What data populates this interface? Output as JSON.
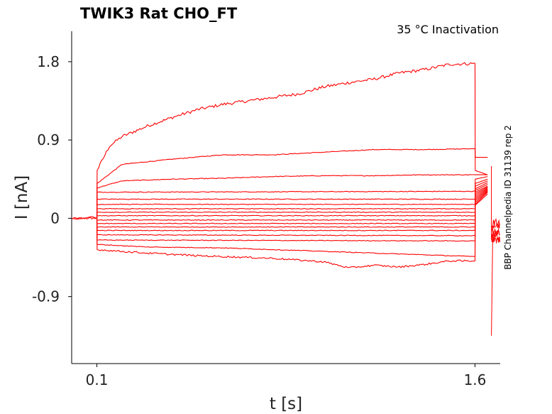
{
  "chart_data": {
    "type": "line",
    "title": "TWIK3  Rat  CHO_FT",
    "subtitle": "35 °C  Inactivation",
    "side_text": "BBP Channelpedia ID 31139 rep 2",
    "xlabel": "t [s]",
    "ylabel": "I [nA]",
    "xlim": [
      0.0,
      1.7
    ],
    "ylim": [
      -1.67,
      2.15
    ],
    "x_ticks": [
      {
        "value": 0.1,
        "label": "0.1"
      },
      {
        "value": 1.6,
        "label": "1.6"
      }
    ],
    "y_ticks": [
      {
        "value": 1.8,
        "label": "1.8"
      },
      {
        "value": 0.9,
        "label": "0.9"
      },
      {
        "value": 0,
        "label": "0"
      },
      {
        "value": -0.9,
        "label": "-0.9"
      }
    ],
    "grid": false,
    "line_color": "#ff0000",
    "series": [
      {
        "holding": 0.01,
        "x": [
          0,
          0.02,
          0.05,
          0.08,
          0.1,
          0.101,
          0.15,
          0.2,
          0.3,
          0.4,
          0.5,
          0.6,
          0.7,
          0.8,
          0.9,
          1.0,
          1.1,
          1.2,
          1.3,
          1.4,
          1.5,
          1.6,
          1.601,
          1.65
        ],
        "y": [
          0,
          -0.01,
          0.0,
          0.02,
          0.0,
          0.55,
          0.83,
          0.94,
          1.06,
          1.16,
          1.25,
          1.31,
          1.35,
          1.39,
          1.43,
          1.51,
          1.56,
          1.6,
          1.67,
          1.71,
          1.77,
          1.78,
          0.55,
          0.5
        ]
      },
      {
        "x": [
          0.1,
          0.101,
          0.2,
          0.4,
          0.6,
          0.8,
          1.0,
          1.2,
          1.4,
          1.6,
          1.601,
          1.65
        ],
        "y": [
          0.0,
          0.4,
          0.62,
          0.68,
          0.73,
          0.73,
          0.76,
          0.79,
          0.79,
          0.8,
          0.7,
          0.7
        ]
      },
      {
        "x": [
          0.1,
          0.101,
          0.2,
          0.4,
          0.6,
          0.8,
          1.0,
          1.2,
          1.4,
          1.6,
          1.601,
          1.65
        ],
        "y": [
          0.0,
          0.35,
          0.43,
          0.45,
          0.46,
          0.48,
          0.49,
          0.49,
          0.5,
          0.5,
          0.5,
          0.5
        ]
      },
      {
        "x": [
          0.1,
          0.101,
          1.6,
          1.601,
          1.65
        ],
        "y": [
          0.0,
          0.3,
          0.31,
          0.45,
          0.48
        ]
      },
      {
        "x": [
          0.1,
          0.101,
          1.6,
          1.601,
          1.65
        ],
        "y": [
          0.0,
          0.22,
          0.22,
          0.4,
          0.45
        ]
      },
      {
        "x": [
          0.1,
          0.101,
          1.6,
          1.601,
          1.65
        ],
        "y": [
          0.0,
          0.16,
          0.16,
          0.37,
          0.43
        ]
      },
      {
        "x": [
          0.1,
          0.101,
          1.6,
          1.601,
          1.65
        ],
        "y": [
          0.0,
          0.11,
          0.11,
          0.34,
          0.41
        ]
      },
      {
        "x": [
          0.1,
          0.101,
          1.6,
          1.601,
          1.65
        ],
        "y": [
          0.0,
          0.07,
          0.07,
          0.32,
          0.39
        ]
      },
      {
        "x": [
          0.1,
          0.101,
          1.6,
          1.601,
          1.65
        ],
        "y": [
          0.0,
          0.03,
          0.03,
          0.3,
          0.37
        ]
      },
      {
        "x": [
          0.1,
          0.101,
          1.6,
          1.601,
          1.65
        ],
        "y": [
          0.0,
          -0.02,
          -0.02,
          0.28,
          0.36
        ]
      },
      {
        "x": [
          0.1,
          0.101,
          1.6,
          1.601,
          1.65
        ],
        "y": [
          0.0,
          -0.06,
          -0.06,
          0.26,
          0.35
        ]
      },
      {
        "x": [
          0.1,
          0.101,
          1.6,
          1.601,
          1.65
        ],
        "y": [
          0.0,
          -0.1,
          -0.1,
          0.24,
          0.34
        ]
      },
      {
        "x": [
          0.1,
          0.101,
          1.6,
          1.601,
          1.65
        ],
        "y": [
          0.0,
          -0.14,
          -0.14,
          0.22,
          0.33
        ]
      },
      {
        "x": [
          0.1,
          0.101,
          1.6,
          1.601,
          1.65
        ],
        "y": [
          0.0,
          -0.19,
          -0.2,
          0.2,
          0.32
        ]
      },
      {
        "x": [
          0.1,
          0.101,
          1.6,
          1.601,
          1.65
        ],
        "y": [
          0.0,
          -0.25,
          -0.26,
          0.18,
          0.31
        ]
      },
      {
        "x": [
          0.1,
          0.101,
          0.3,
          0.6,
          0.9,
          1.2,
          1.6,
          1.601,
          1.65
        ],
        "y": [
          0.0,
          -0.3,
          -0.33,
          -0.34,
          -0.37,
          -0.4,
          -0.44,
          0.16,
          0.3
        ]
      },
      {
        "x": [
          0.1,
          0.101,
          0.3,
          0.5,
          0.8,
          1.0,
          1.1,
          1.2,
          1.3,
          1.4,
          1.5,
          1.6,
          1.601,
          1.65
        ],
        "y": [
          0.0,
          -0.36,
          -0.4,
          -0.43,
          -0.46,
          -0.5,
          -0.57,
          -0.54,
          -0.56,
          -0.53,
          -0.49,
          -0.49,
          0.15,
          0.28
        ]
      }
    ],
    "tail_region": {
      "x_start": 1.665,
      "x_end": 1.7,
      "y_min": -1.35,
      "y_max": 0.6
    }
  }
}
